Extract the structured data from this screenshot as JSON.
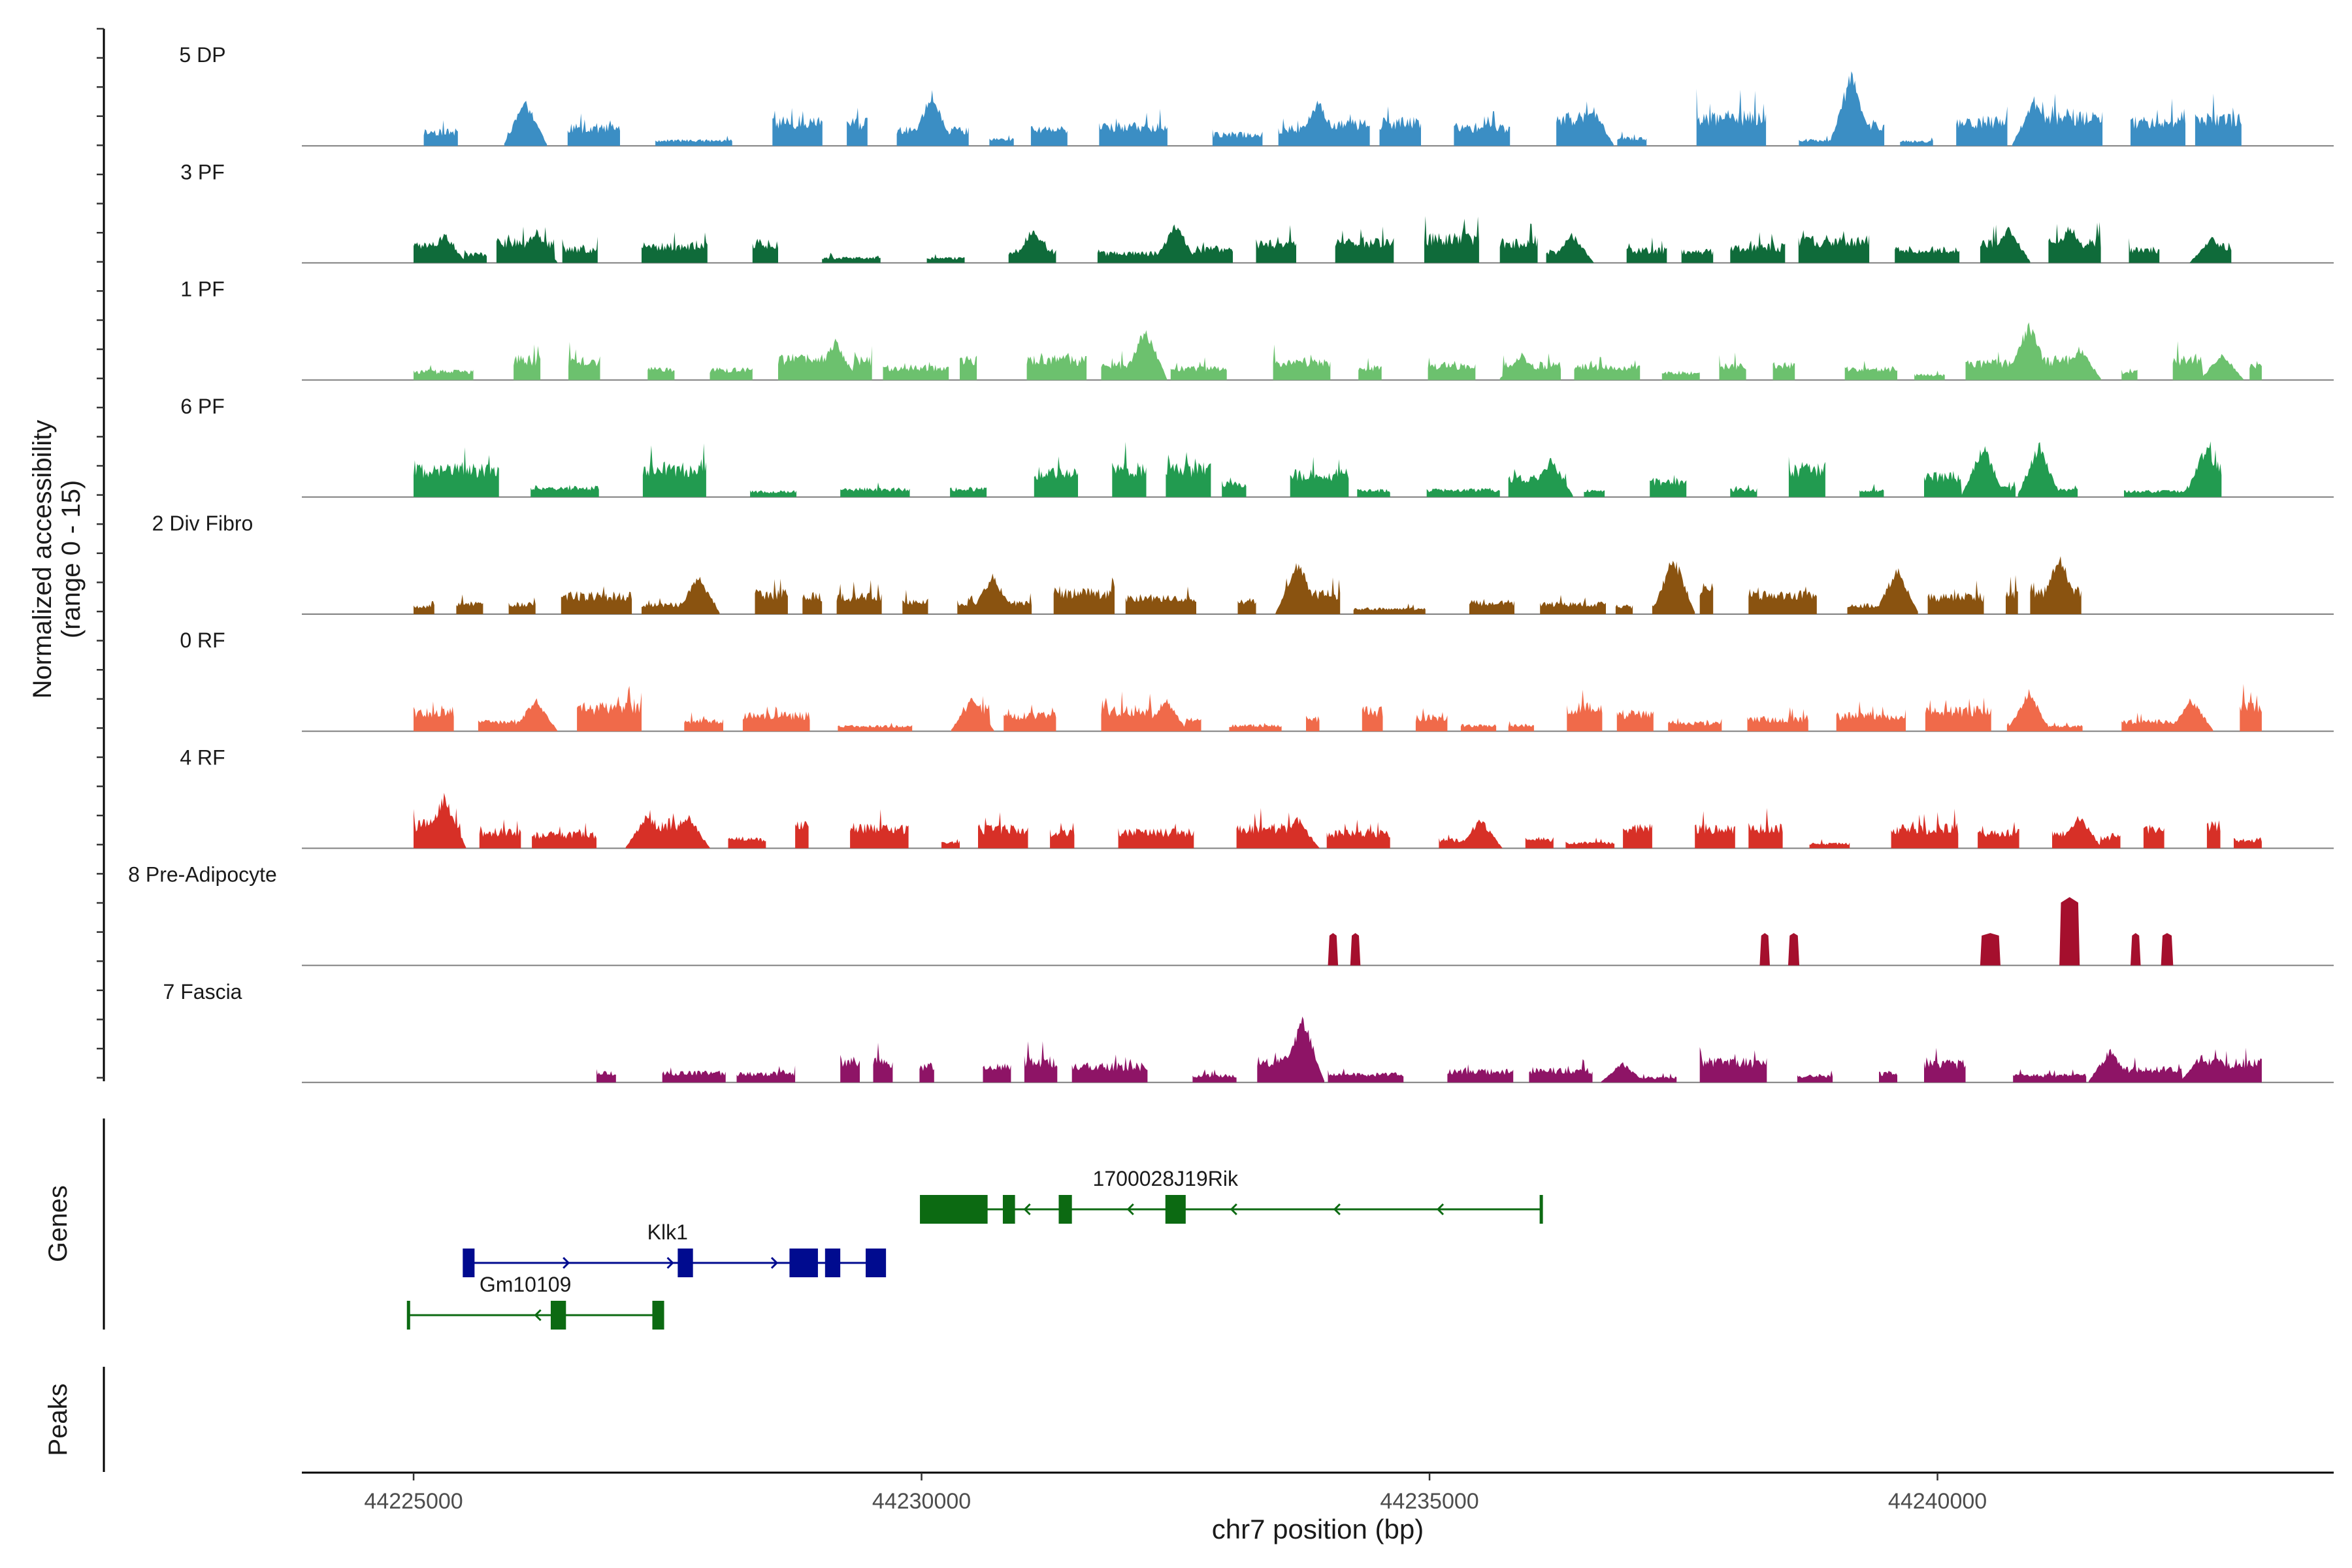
{
  "chart_data": {
    "type": "area",
    "title": "",
    "ylabel_line1": "Normalized accessibility",
    "ylabel_line2": "(range 0 - 15)",
    "ylim": [
      0,
      15
    ],
    "xlabel": "chr7 position (bp)",
    "xlim": [
      44223900,
      44243900
    ],
    "x_ticks": [
      44225000,
      44230000,
      44235000,
      44240000
    ],
    "x_tick_labels": [
      "44225000",
      "44230000",
      "44235000",
      "44240000"
    ],
    "genes_label": "Genes",
    "peaks_label": "Peaks",
    "tracks": [
      {
        "name": "5 DP",
        "color": "#3b8ec4",
        "start": 44225100,
        "end": 44243000,
        "spacing": 75,
        "amp": 4.2,
        "seed": 11,
        "peaks": [
          [
            44226100,
            7
          ],
          [
            44230100,
            8
          ],
          [
            44233900,
            7
          ],
          [
            44236600,
            6
          ],
          [
            44239150,
            11
          ],
          [
            44240950,
            7
          ]
        ]
      },
      {
        "name": "3 PF",
        "color": "#0f6b3a",
        "start": 44225000,
        "end": 44242900,
        "spacing": 75,
        "amp": 3.5,
        "seed": 23,
        "peaks": [
          [
            44225300,
            4.5
          ],
          [
            44226200,
            5
          ],
          [
            44231100,
            5.5
          ],
          [
            44232500,
            6
          ],
          [
            44236400,
            4.5
          ],
          [
            44240700,
            5.5
          ],
          [
            44241300,
            5.5
          ],
          [
            44242700,
            4
          ]
        ]
      },
      {
        "name": "1 PF",
        "color": "#6cc16e",
        "start": 44225000,
        "end": 44243200,
        "spacing": 75,
        "amp": 3.0,
        "seed": 37,
        "peaks": [
          [
            44229150,
            6
          ],
          [
            44232200,
            8
          ],
          [
            44235900,
            4
          ],
          [
            44240900,
            9
          ],
          [
            44241400,
            5
          ],
          [
            44242800,
            4
          ]
        ]
      },
      {
        "name": "6 PF",
        "color": "#229b50",
        "start": 44225000,
        "end": 44242800,
        "spacing": 80,
        "amp": 4.2,
        "seed": 41,
        "peaks": [
          [
            44240450,
            8
          ],
          [
            44241000,
            8
          ],
          [
            44242650,
            8
          ],
          [
            44236200,
            6
          ]
        ]
      },
      {
        "name": "2 Div Fibro",
        "color": "#8a5310",
        "start": 44225000,
        "end": 44241500,
        "spacing": 70,
        "amp": 4.0,
        "seed": 53,
        "peaks": [
          [
            44233700,
            8
          ],
          [
            44237400,
            9
          ],
          [
            44239600,
            7
          ],
          [
            44241200,
            9
          ],
          [
            44227800,
            6
          ],
          [
            44230700,
            6
          ]
        ]
      },
      {
        "name": "0 RF",
        "color": "#f06a4a",
        "start": 44225000,
        "end": 44243200,
        "spacing": 70,
        "amp": 3.5,
        "seed": 67,
        "peaks": [
          [
            44226200,
            5
          ],
          [
            44230500,
            5
          ],
          [
            44232400,
            5
          ],
          [
            44240900,
            6
          ],
          [
            44242500,
            5
          ]
        ]
      },
      {
        "name": "4 RF",
        "color": "#d73027",
        "start": 44225000,
        "end": 44243200,
        "spacing": 70,
        "amp": 3.5,
        "seed": 79,
        "peaks": [
          [
            44225300,
            8
          ],
          [
            44227300,
            5
          ],
          [
            44227700,
            5
          ],
          [
            44233700,
            4.5
          ],
          [
            44235500,
            4.5
          ],
          [
            44241400,
            5
          ]
        ]
      },
      {
        "name": "8 Pre-Adipocyte",
        "color": "#a50f2d",
        "start": 44233950,
        "end": 44242300,
        "spacing": 60,
        "amp": 0,
        "seed": 0,
        "blocks": [
          [
            44234000,
            44234100,
            4.5
          ],
          [
            44234220,
            44234320,
            4.5
          ],
          [
            44238250,
            44238350,
            4.5
          ],
          [
            44238530,
            44238640,
            4.5
          ],
          [
            44240420,
            44240620,
            4.5
          ],
          [
            44241200,
            44241400,
            9.5
          ],
          [
            44241900,
            44242000,
            4.5
          ],
          [
            44242200,
            44242320,
            4.5
          ]
        ]
      },
      {
        "name": "7 Fascia",
        "color": "#8e1466",
        "start": 44226800,
        "end": 44243200,
        "spacing": 75,
        "amp": 3.2,
        "seed": 97,
        "peaks": [
          [
            44233750,
            10
          ],
          [
            44241700,
            5
          ],
          [
            44242600,
            4
          ],
          [
            44236900,
            3
          ]
        ]
      }
    ],
    "genes": [
      {
        "name": "1700028J19Rik",
        "color": "#0c6a12",
        "strand": "-",
        "start": 44230000,
        "end": 44236100,
        "exons": [
          [
            44230000,
            44230650
          ],
          [
            44230800,
            44230920
          ],
          [
            44231350,
            44231480
          ],
          [
            44232400,
            44232600
          ]
        ],
        "row": 0,
        "label_x": 44232400
      },
      {
        "name": "Klk1",
        "color": "#000b8f",
        "strand": "+",
        "start": 44225500,
        "end": 44229600,
        "exons": [
          [
            44225500,
            44225600
          ],
          [
            44227600,
            44227750
          ],
          [
            44228700,
            44228980
          ],
          [
            44229050,
            44229200
          ],
          [
            44229450,
            44229650
          ]
        ],
        "row": 1,
        "label_x": 44227500
      },
      {
        "name": "Gm10109",
        "color": "#0c6a12",
        "strand": "-",
        "start": 44224950,
        "end": 44227450,
        "exons": [
          [
            44226350,
            44226500
          ],
          [
            44227350,
            44227450
          ]
        ],
        "row": 2,
        "label_x": 44226100
      }
    ]
  }
}
